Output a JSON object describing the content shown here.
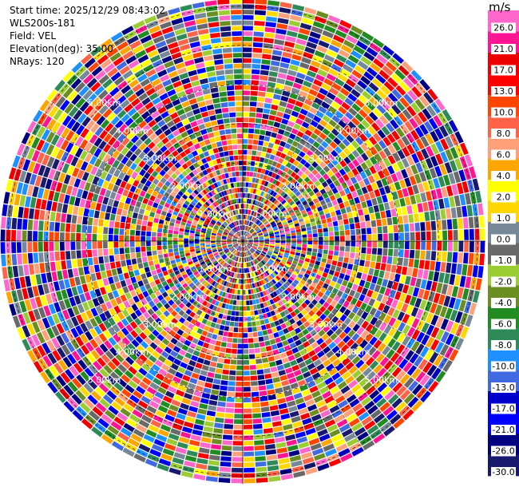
{
  "header": {
    "start_time": "Start time: 2025/12/29 08:43:02",
    "instrument": "WLS200s-181",
    "field": "Field: VEL",
    "elevation": "Elevation(deg): 35.00",
    "nrays": "NRays: 120"
  },
  "chart_data": {
    "type": "heatmap",
    "projection": "polar-ppi",
    "field": "VEL",
    "units": "m/s",
    "n_rays": 120,
    "n_gates": 45,
    "range_km": [
      0,
      6.2
    ],
    "range_rings_km": [
      1,
      2,
      3,
      4,
      5,
      6
    ],
    "ring_labels": [
      "1.00km",
      "2.00km",
      "3.00km",
      "4.00km",
      "5.00km"
    ],
    "grid": true,
    "colorbar": {
      "unit": "m/s",
      "ticks": [
        "26.0",
        "21.0",
        "17.0",
        "13.0",
        "10.0",
        "8.0",
        "6.0",
        "4.0",
        "2.0",
        "1.0",
        "0.0",
        "-1.0",
        "-2.0",
        "-4.0",
        "-6.0",
        "-8.0",
        "-10.0",
        "-13.0",
        "-17.0",
        "-21.0",
        "-26.0",
        "-30.0"
      ],
      "colors": [
        "#ff66cc",
        "#ff1493",
        "#ee0000",
        "#ff0000",
        "#ff4500",
        "#ff6347",
        "#ffa07a",
        "#ffa500",
        "#ffff00",
        "#ffd700",
        "#778899",
        "#696969",
        "#9acd32",
        "#6b8e23",
        "#228b22",
        "#2e8b57",
        "#1e90ff",
        "#4169e1",
        "#0000cd",
        "#0000ff",
        "#000080",
        "#191970"
      ]
    },
    "values_note": "Velocity field appears as spatially random noise across all rays and gates; individual gate values are not legible."
  }
}
